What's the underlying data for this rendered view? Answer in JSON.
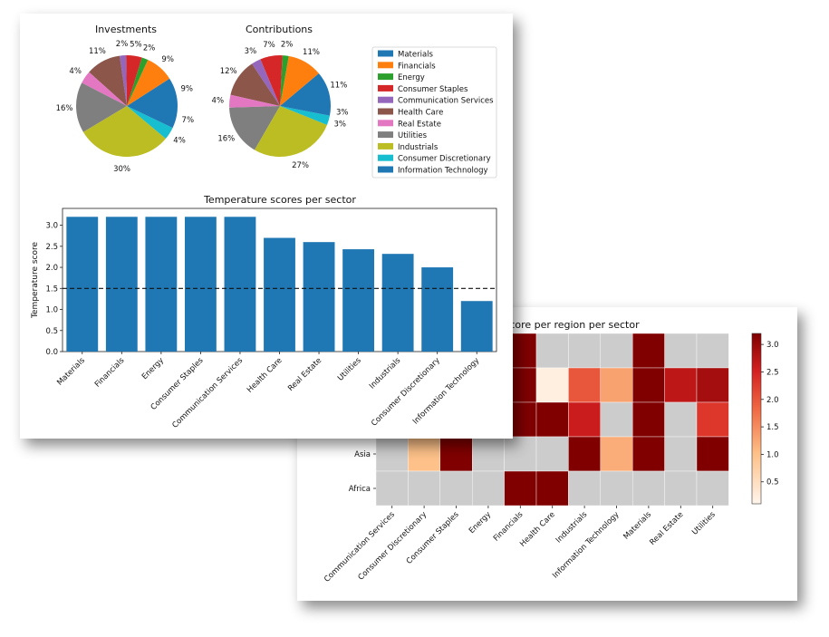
{
  "chart_data": [
    {
      "type": "pie",
      "title": "Investments",
      "labels": [
        "Materials",
        "Financials",
        "Energy",
        "Consumer Staples",
        "Communication Services",
        "Health Care",
        "Real Estate",
        "Utilities",
        "Industrials",
        "Consumer Discretionary",
        "Information Technology"
      ],
      "values": [
        9,
        9,
        2,
        5,
        2,
        11,
        4,
        16,
        30,
        4,
        7
      ],
      "value_labels": [
        "9%",
        "9%",
        "2%",
        "5%",
        "2%",
        "11%",
        "4%",
        "16%",
        "30%",
        "4%",
        "7%"
      ]
    },
    {
      "type": "pie",
      "title": "Contributions",
      "labels": [
        "Materials",
        "Financials",
        "Energy",
        "Consumer Staples",
        "Communication Services",
        "Health Care",
        "Real Estate",
        "Utilities",
        "Industrials",
        "Consumer Discretionary",
        "Information Technology"
      ],
      "values": [
        11,
        11,
        2,
        7,
        3,
        12,
        4,
        16,
        27,
        3,
        3
      ],
      "value_labels": [
        "11%",
        "11%",
        "2%",
        "7%",
        "3%",
        "12%",
        "4%",
        "16%",
        "27%",
        "3%",
        "3%"
      ]
    },
    {
      "type": "bar",
      "title": "Temperature scores per sector",
      "ylabel": "Temperature score",
      "categories": [
        "Materials",
        "Financials",
        "Energy",
        "Consumer Staples",
        "Communication Services",
        "Health Care",
        "Real Estate",
        "Utilities",
        "Industrials",
        "Consumer Discretionary",
        "Information Technology"
      ],
      "values": [
        3.2,
        3.2,
        3.2,
        3.2,
        3.2,
        2.7,
        2.6,
        2.43,
        2.32,
        2.0,
        1.2
      ],
      "ylim": [
        0,
        3.4
      ],
      "yticks": [
        "0.0",
        "0.5",
        "1.0",
        "1.5",
        "2.0",
        "2.5",
        "3.0"
      ],
      "reference_line": 1.5
    },
    {
      "type": "heatmap",
      "title_visible": "e score per region per sector",
      "x": [
        "Communication Services",
        "Consumer Discretionary",
        "Consumer Staples",
        "Energy",
        "Financials",
        "Health Care",
        "Industrials",
        "Information Technology",
        "Materials",
        "Real Estate",
        "Utilities"
      ],
      "y_visible": [
        "Asia",
        "Africa"
      ],
      "colorbar_ticks": [
        "0.5",
        "1.0",
        "1.5",
        "2.0",
        "2.5",
        "3.0"
      ],
      "colorbar_range": [
        0.1,
        3.2
      ],
      "rows_visible_partial": [
        [
          null,
          null,
          null,
          null,
          3.2,
          null,
          null,
          null,
          3.2,
          null,
          null
        ],
        [
          null,
          null,
          null,
          null,
          3.2,
          0.2,
          2.0,
          1.3,
          3.2,
          2.7,
          2.9
        ],
        [
          null,
          null,
          null,
          null,
          3.2,
          3.2,
          2.6,
          null,
          3.2,
          null,
          2.3
        ],
        [
          null,
          1.0,
          3.2,
          null,
          null,
          null,
          3.2,
          1.2,
          3.2,
          null,
          3.2
        ],
        [
          null,
          null,
          null,
          null,
          3.2,
          3.2,
          null,
          null,
          null,
          null,
          null
        ]
      ]
    }
  ],
  "colors": {
    "Materials": "#1f77b4",
    "Financials": "#ff7f0e",
    "Energy": "#2ca02c",
    "Consumer Staples": "#d62728",
    "Communication Services": "#9467bd",
    "Health Care": "#8c564b",
    "Real Estate": "#e377c2",
    "Utilities": "#7f7f7f",
    "Industrials": "#bcbd22",
    "Consumer Discretionary": "#17becf",
    "Information Technology": "#1f77b4",
    "missing": "#cccccc",
    "bar": "#1f77b4"
  }
}
